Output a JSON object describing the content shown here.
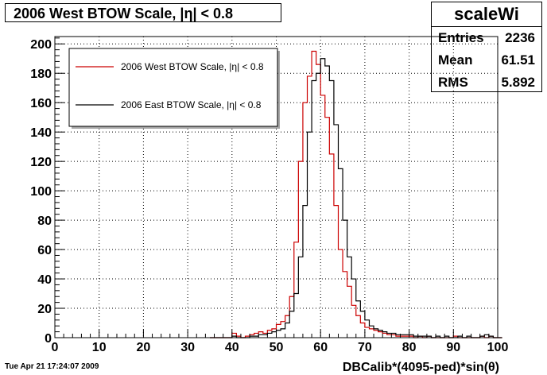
{
  "title": "2006 West BTOW Scale, |η| < 0.8",
  "stats": {
    "name": "scaleWi",
    "rows": [
      {
        "label": "Entries",
        "value": "2236"
      },
      {
        "label": "Mean",
        "value": "61.51"
      },
      {
        "label": "RMS",
        "value": "5.892"
      }
    ]
  },
  "timestamp": "Tue Apr 21 17:24:07 2009",
  "chart_data": {
    "type": "line",
    "style": "histogram",
    "title": "2006 West BTOW Scale, |η| < 0.8",
    "xlabel": "DBCalib*(4095-ped)*sin(θ)",
    "ylabel": "",
    "xlim": [
      0,
      100
    ],
    "ylim": [
      0,
      205
    ],
    "xticks": [
      "0",
      "10",
      "20",
      "30",
      "40",
      "50",
      "60",
      "70",
      "80",
      "90",
      "100"
    ],
    "yticks": [
      "0",
      "20",
      "40",
      "60",
      "80",
      "100",
      "120",
      "140",
      "160",
      "180",
      "200"
    ],
    "grid": true,
    "legend_position": "top-left",
    "bin_width": 1,
    "bin_start": 35,
    "series": [
      {
        "name": "2006 West BTOW Scale, |η| < 0.8",
        "color": "#cc0000",
        "values": [
          0,
          0,
          0,
          0,
          0,
          3,
          1,
          0,
          1,
          2,
          3,
          4,
          3,
          5,
          6,
          9,
          11,
          15,
          28,
          65,
          120,
          160,
          178,
          195,
          186,
          165,
          150,
          125,
          90,
          60,
          45,
          35,
          22,
          15,
          10,
          7,
          6,
          5,
          4,
          3,
          2,
          2,
          1,
          1,
          1,
          1,
          0,
          1,
          0,
          1,
          0,
          0,
          0,
          0,
          0,
          1,
          0,
          0,
          0,
          0,
          0,
          1,
          0,
          1,
          0,
          0
        ]
      },
      {
        "name": "2006 East BTOW Scale, |η| < 0.8",
        "color": "#000000",
        "values": [
          0,
          0,
          0,
          0,
          0,
          1,
          0,
          0,
          0,
          1,
          1,
          2,
          2,
          3,
          4,
          5,
          6,
          10,
          18,
          30,
          55,
          90,
          140,
          175,
          180,
          190,
          185,
          175,
          145,
          115,
          80,
          55,
          40,
          25,
          18,
          12,
          8,
          6,
          5,
          4,
          3,
          3,
          2,
          2,
          2,
          2,
          1,
          1,
          1,
          1,
          0,
          1,
          0,
          1,
          0,
          0,
          1,
          0,
          1,
          0,
          0,
          1,
          2,
          1,
          0,
          0
        ]
      }
    ]
  }
}
